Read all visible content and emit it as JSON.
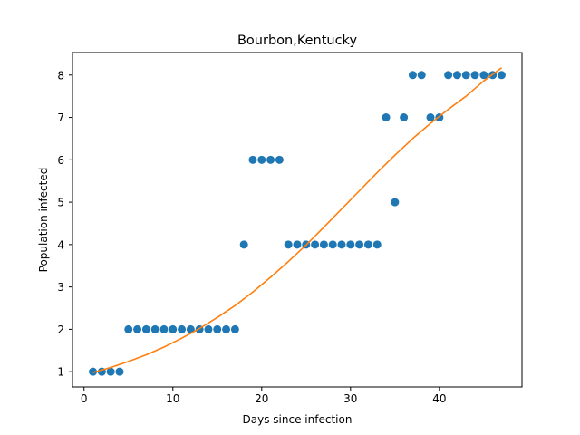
{
  "chart_data": {
    "type": "scatter",
    "title": "Bourbon,Kentucky",
    "xlabel": "Days since infection",
    "ylabel": "Population infected",
    "xlim": [
      -1.3,
      49.3
    ],
    "ylim": [
      0.64,
      8.53
    ],
    "xticks": [
      0,
      10,
      20,
      30,
      40
    ],
    "yticks": [
      1,
      2,
      3,
      4,
      5,
      6,
      7,
      8
    ],
    "grid": false,
    "legend": "none",
    "series": [
      {
        "kind": "scatter",
        "color": "#1f77b4",
        "x": [
          1,
          2,
          3,
          4,
          5,
          6,
          7,
          8,
          9,
          10,
          11,
          12,
          13,
          14,
          15,
          16,
          17,
          18,
          19,
          20,
          21,
          22,
          23,
          24,
          25,
          26,
          27,
          28,
          29,
          30,
          31,
          32,
          33,
          34,
          35,
          36,
          37,
          38,
          39,
          40,
          41,
          42,
          43,
          44,
          45,
          46,
          47
        ],
        "y": [
          1,
          1,
          1,
          1,
          2,
          2,
          2,
          2,
          2,
          2,
          2,
          2,
          2,
          2,
          2,
          2,
          2,
          4,
          6,
          6,
          6,
          6,
          4,
          4,
          4,
          4,
          4,
          4,
          4,
          4,
          4,
          4,
          4,
          7,
          5,
          7,
          8,
          8,
          7,
          7,
          8,
          8,
          8,
          8,
          8,
          8,
          8
        ]
      },
      {
        "kind": "line",
        "color": "#ff7f0e",
        "x": [
          1,
          3,
          5,
          7,
          9,
          11,
          13,
          15,
          17,
          19,
          21,
          23,
          25,
          27,
          29,
          31,
          33,
          35,
          37,
          39,
          41,
          43,
          45,
          47
        ],
        "y": [
          0.98,
          1.1,
          1.24,
          1.4,
          1.58,
          1.79,
          2.02,
          2.28,
          2.56,
          2.88,
          3.23,
          3.6,
          3.99,
          4.41,
          4.84,
          5.27,
          5.7,
          6.11,
          6.5,
          6.86,
          7.19,
          7.5,
          7.86,
          8.17
        ]
      }
    ]
  }
}
